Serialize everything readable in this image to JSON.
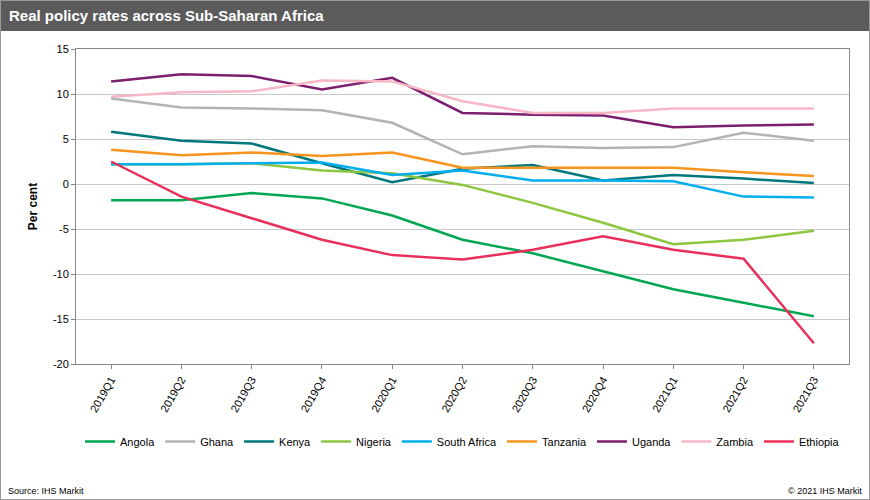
{
  "chart_data": {
    "type": "line",
    "title": "Real policy rates across Sub-Saharan Africa",
    "y_label": "Per cent",
    "source": "Source: IHS Markit",
    "copyright": "© 2021 IHS Markit",
    "categories": [
      "2019Q1",
      "2019Q2",
      "2019Q3",
      "2019Q4",
      "2020Q1",
      "2020Q2",
      "2020Q3",
      "2020Q4",
      "2021Q1",
      "2021Q2",
      "2021Q3"
    ],
    "series": [
      {
        "name": "Angola",
        "color": "#00a651",
        "values": [
          -1.8,
          -1.8,
          -1.0,
          -1.6,
          -3.5,
          -6.2,
          -7.7,
          -9.7,
          -11.7,
          -13.2,
          -14.7
        ]
      },
      {
        "name": "Ghana",
        "color": "#b3b3b3",
        "values": [
          9.5,
          8.5,
          8.4,
          8.2,
          6.8,
          3.3,
          4.2,
          4.0,
          4.1,
          5.7,
          4.8
        ]
      },
      {
        "name": "Kenya",
        "color": "#00777a",
        "values": [
          5.8,
          4.8,
          4.5,
          2.3,
          0.2,
          1.7,
          2.1,
          0.4,
          1.0,
          0.6,
          0.1
        ]
      },
      {
        "name": "Nigeria",
        "color": "#8dc63f",
        "values": [
          2.2,
          2.2,
          2.3,
          1.5,
          1.2,
          -0.1,
          -2.1,
          -4.3,
          -6.7,
          -6.2,
          -5.2
        ]
      },
      {
        "name": "South Africa",
        "color": "#00aeef",
        "values": [
          2.2,
          2.2,
          2.3,
          2.4,
          1.0,
          1.5,
          0.4,
          0.4,
          0.3,
          -1.4,
          -1.5
        ]
      },
      {
        "name": "Tanzania",
        "color": "#f7941d",
        "values": [
          3.8,
          3.2,
          3.5,
          3.1,
          3.5,
          1.8,
          1.8,
          1.8,
          1.8,
          1.3,
          0.9
        ]
      },
      {
        "name": "Uganda",
        "color": "#7b1f6e",
        "values": [
          11.4,
          12.2,
          12.0,
          10.5,
          11.8,
          7.9,
          7.7,
          7.6,
          6.3,
          6.5,
          6.6
        ]
      },
      {
        "name": "Zambia",
        "color": "#f7b7c4",
        "values": [
          9.7,
          10.2,
          10.3,
          11.5,
          11.4,
          9.2,
          7.9,
          7.9,
          8.4,
          8.4,
          8.4
        ]
      },
      {
        "name": "Ethiopia",
        "color": "#e8305a",
        "values": [
          2.5,
          -1.4,
          -3.8,
          -6.2,
          -7.9,
          -8.4,
          -7.3,
          -5.8,
          -7.3,
          -8.3,
          -17.7
        ]
      }
    ],
    "ylim": [
      -20,
      15
    ],
    "yticks": [
      -20,
      -15,
      -10,
      -5,
      0,
      5,
      10,
      15
    ],
    "grid": true,
    "legend": "bottom"
  }
}
